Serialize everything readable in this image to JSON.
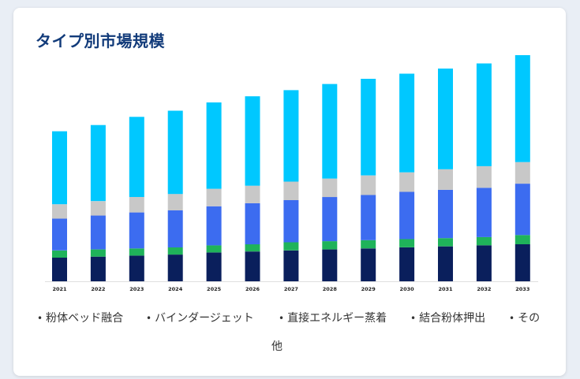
{
  "title": "タイプ別市場規模",
  "legend": [
    {
      "label": "粉体ベッド融合",
      "color": "#00c8ff"
    },
    {
      "label": "バインダージェット",
      "color": "#c8c8c8"
    },
    {
      "label": "直接エネルギー蒸着",
      "color": "#3c6cf0"
    },
    {
      "label": "結合粉体押出",
      "color": "#1fb35a"
    },
    {
      "label": "その他",
      "color": "#0a1f5c"
    }
  ],
  "legend_last_line1": "その",
  "legend_last_line2": "他",
  "chart_data": {
    "type": "bar",
    "stacked": true,
    "title": "タイプ別市場規模",
    "xlabel": "",
    "ylabel": "",
    "categories": [
      "2021",
      "2022",
      "2023",
      "2024",
      "2025",
      "2026",
      "2027",
      "2028",
      "2029",
      "2030",
      "2031",
      "2032",
      "2033"
    ],
    "series": [
      {
        "name": "その他",
        "color": "#0a1f5c",
        "values": [
          23,
          24,
          25,
          26,
          28,
          29,
          30,
          31,
          32,
          33,
          34,
          35,
          36
        ]
      },
      {
        "name": "結合粉体押出",
        "color": "#1fb35a",
        "values": [
          7,
          7,
          7,
          7,
          7,
          7,
          8,
          8,
          8,
          8,
          8,
          8,
          9
        ]
      },
      {
        "name": "直接エネルギー蒸着",
        "color": "#3c6cf0",
        "values": [
          31,
          33,
          35,
          36,
          38,
          40,
          41,
          43,
          44,
          46,
          47,
          48,
          50
        ]
      },
      {
        "name": "バインダージェット",
        "color": "#c8c8c8",
        "values": [
          14,
          14,
          15,
          16,
          17,
          17,
          18,
          18,
          19,
          19,
          20,
          21,
          21
        ]
      },
      {
        "name": "粉体ベッド融合",
        "color": "#00c8ff",
        "values": [
          71,
          74,
          78,
          81,
          84,
          87,
          89,
          92,
          94,
          96,
          98,
          100,
          104
        ]
      }
    ],
    "ylim": [
      0,
      230
    ],
    "grid": false,
    "legend_position": "bottom"
  }
}
